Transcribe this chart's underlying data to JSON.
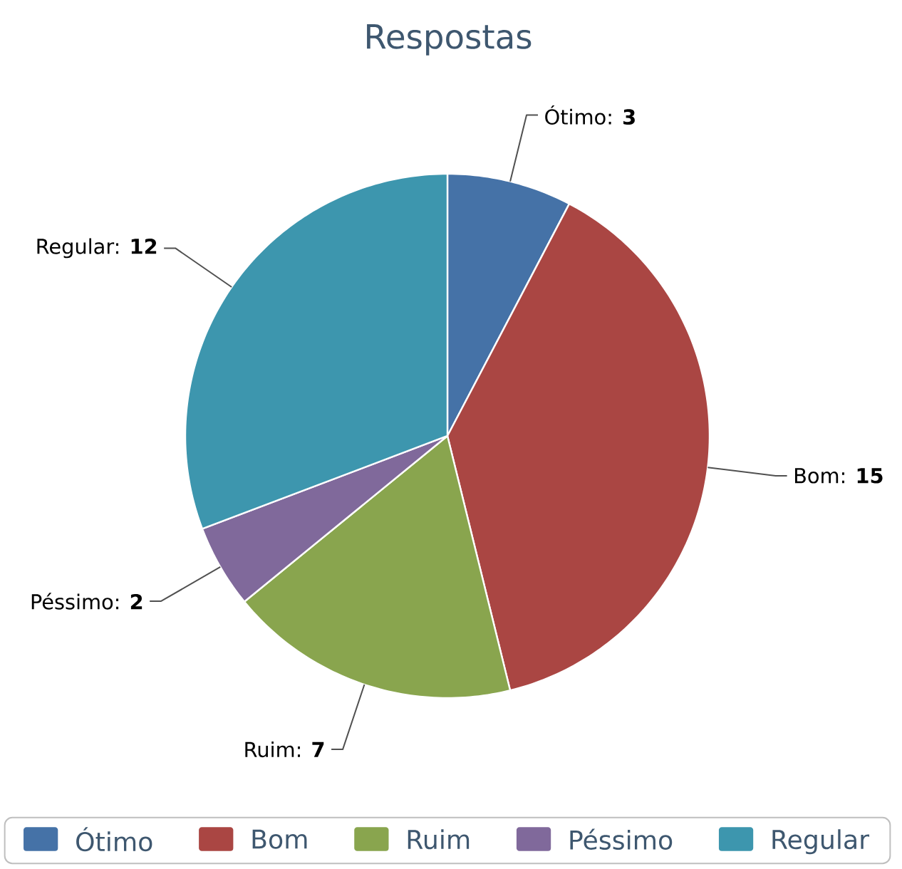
{
  "chart_data": {
    "type": "pie",
    "title": "Respostas",
    "categories": [
      "Ótimo",
      "Bom",
      "Ruim",
      "Péssimo",
      "Regular"
    ],
    "values": [
      3,
      15,
      7,
      2,
      12
    ],
    "colors": [
      "#4572a7",
      "#aa4643",
      "#89a54e",
      "#80699b",
      "#3d96ae"
    ],
    "value_labels": [
      "Ótimo: **3**",
      "Bom: **15**",
      "Ruim: **7**",
      "Péssimo: **2**",
      "Regular: **12**"
    ],
    "legend": "bottom"
  }
}
